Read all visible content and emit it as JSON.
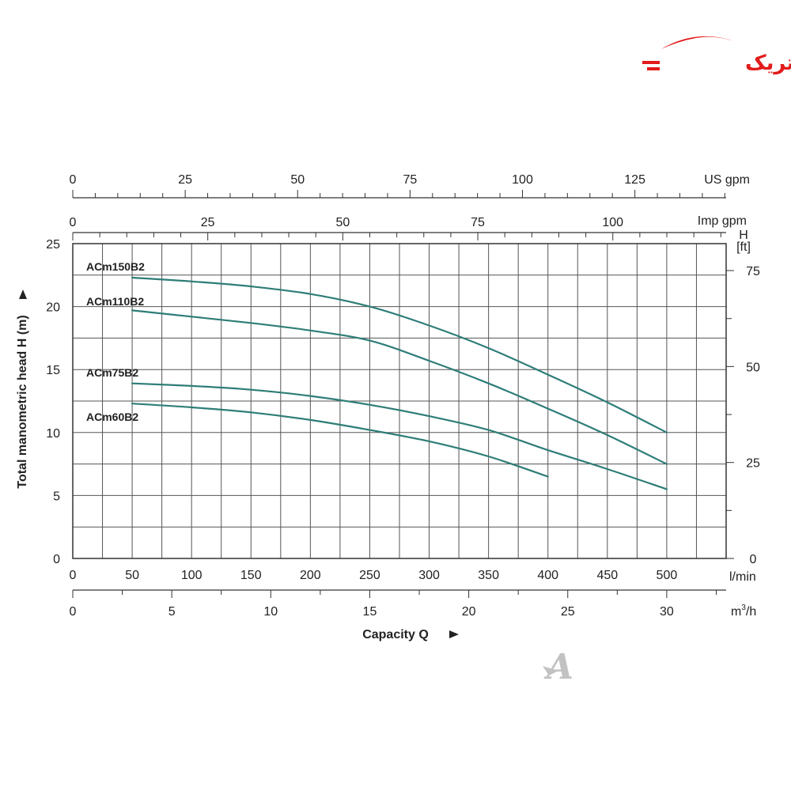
{
  "brand": {
    "logo_text": "آتاالکتریک",
    "logo_color": "#e21b1b",
    "watermark_letter": "A",
    "watermark_color": "#b8b8b8"
  },
  "chart_data": {
    "type": "line",
    "title": "",
    "curve_color": "#2e7d78",
    "grid": true,
    "x_axis": {
      "label": "Capacity Q",
      "unit": "l/min",
      "range": [
        0,
        550
      ],
      "ticks": [
        0,
        50,
        100,
        150,
        200,
        250,
        300,
        350,
        400,
        450,
        500
      ]
    },
    "x_axis_m3h": {
      "unit_base": "m",
      "unit_sup": "3",
      "unit_tail": "/h",
      "ticks": [
        0,
        5,
        10,
        15,
        20,
        25,
        30
      ]
    },
    "x_axis_us_gpm": {
      "unit": "US gpm",
      "ticks": [
        0,
        25,
        50,
        75,
        100,
        125
      ]
    },
    "x_axis_imp_gpm": {
      "unit": "Imp gpm",
      "ticks": [
        0,
        25,
        50,
        75,
        100
      ]
    },
    "y_axis": {
      "label": "Total manometric head H (m)",
      "range": [
        0,
        25
      ],
      "ticks": [
        0,
        5,
        10,
        15,
        20,
        25
      ]
    },
    "y_axis_ft": {
      "label_line1": "H",
      "label_line2": "[ft]",
      "ticks": [
        0,
        25,
        50,
        75
      ]
    },
    "series": [
      {
        "name": "ACm150B2",
        "x": [
          50,
          100,
          150,
          200,
          250,
          300,
          350,
          400,
          450,
          500
        ],
        "y": [
          22.3,
          22.0,
          21.6,
          21.0,
          20.0,
          18.5,
          16.7,
          14.6,
          12.4,
          10.0
        ]
      },
      {
        "name": "ACm110B2",
        "x": [
          50,
          100,
          150,
          200,
          250,
          300,
          350,
          400,
          450,
          500
        ],
        "y": [
          19.7,
          19.2,
          18.7,
          18.1,
          17.3,
          15.7,
          13.9,
          11.9,
          9.8,
          7.5
        ]
      },
      {
        "name": "ACm75B2",
        "x": [
          50,
          100,
          150,
          200,
          250,
          300,
          350,
          400,
          450,
          500
        ],
        "y": [
          13.9,
          13.7,
          13.4,
          12.9,
          12.2,
          11.3,
          10.2,
          8.6,
          7.1,
          5.5
        ]
      },
      {
        "name": "ACm60B2",
        "x": [
          50,
          100,
          150,
          200,
          250,
          300,
          350,
          400
        ],
        "y": [
          12.3,
          12.0,
          11.6,
          11.0,
          10.2,
          9.3,
          8.1,
          6.5
        ]
      }
    ]
  }
}
